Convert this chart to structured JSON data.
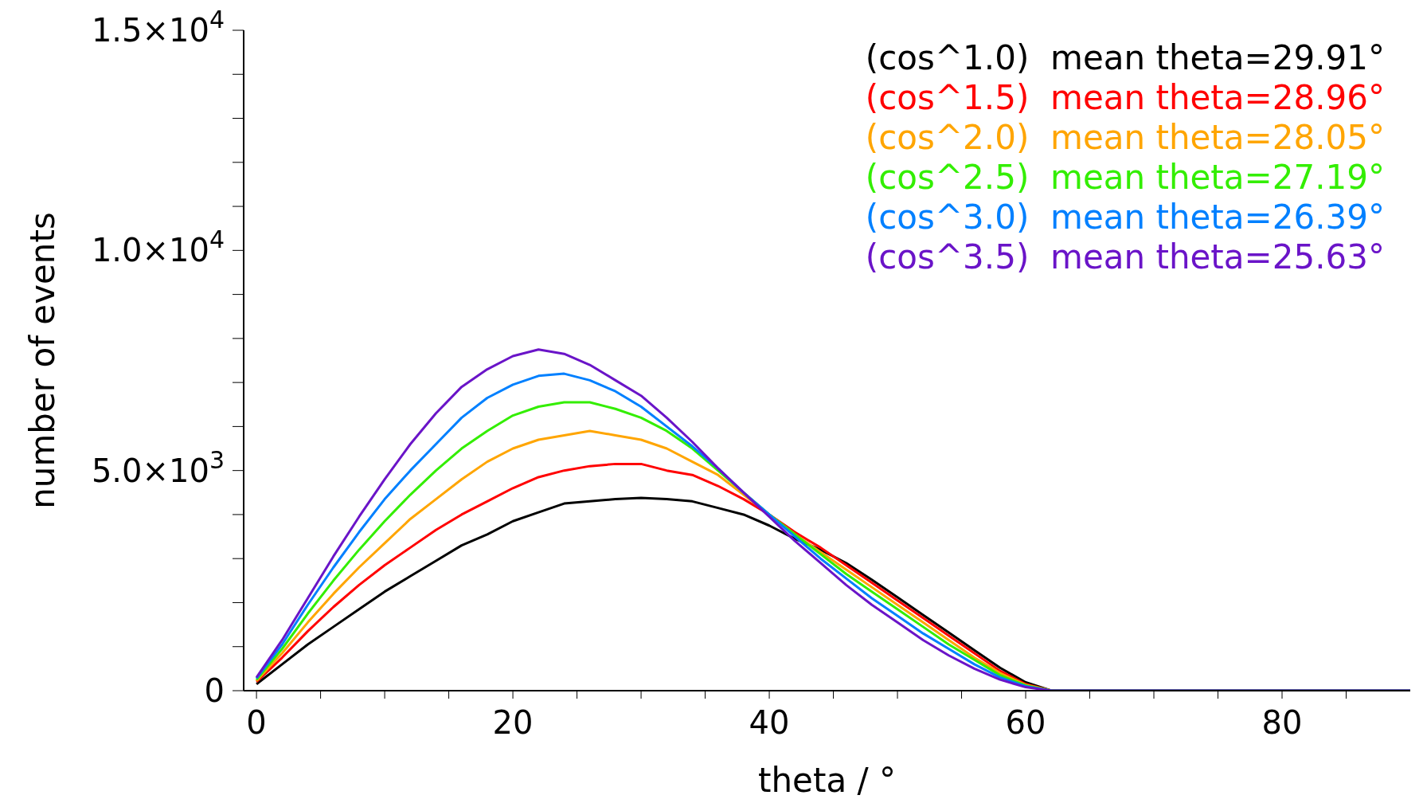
{
  "chart_data": {
    "type": "line",
    "xlabel": "theta / °",
    "ylabel": "number of events",
    "x": [
      0,
      2,
      4,
      6,
      8,
      10,
      12,
      14,
      16,
      18,
      20,
      22,
      24,
      26,
      28,
      30,
      32,
      34,
      36,
      38,
      40,
      42,
      44,
      46,
      48,
      50,
      52,
      54,
      56,
      58,
      60,
      62,
      90
    ],
    "series": [
      {
        "name": "(cos^1.0)  mean theta=29.91°",
        "color": "#000000",
        "values": [
          150,
          600,
          1050,
          1450,
          1850,
          2250,
          2600,
          2950,
          3300,
          3550,
          3850,
          4050,
          4250,
          4300,
          4350,
          4380,
          4350,
          4300,
          4150,
          4000,
          3750,
          3450,
          3200,
          2900,
          2520,
          2120,
          1720,
          1320,
          920,
          520,
          190,
          0,
          0
        ]
      },
      {
        "name": "(cos^1.5)  mean theta=28.96°",
        "color": "#ff0000",
        "values": [
          200,
          750,
          1350,
          1900,
          2400,
          2850,
          3250,
          3650,
          4000,
          4300,
          4600,
          4850,
          5000,
          5100,
          5150,
          5150,
          5000,
          4900,
          4650,
          4350,
          4000,
          3600,
          3250,
          2850,
          2450,
          2050,
          1650,
          1250,
          850,
          450,
          150,
          0,
          0
        ]
      },
      {
        "name": "(cos^2.0)  mean theta=28.05°",
        "color": "#ffa500",
        "values": [
          220,
          850,
          1550,
          2200,
          2800,
          3350,
          3900,
          4350,
          4800,
          5200,
          5500,
          5700,
          5800,
          5900,
          5800,
          5700,
          5500,
          5200,
          4900,
          4450,
          4000,
          3550,
          3150,
          2750,
          2350,
          1950,
          1550,
          1150,
          750,
          400,
          130,
          0,
          0
        ]
      },
      {
        "name": "(cos^2.5)  mean theta=27.19°",
        "color": "#33ee00",
        "values": [
          250,
          950,
          1750,
          2500,
          3200,
          3850,
          4450,
          5000,
          5500,
          5900,
          6250,
          6450,
          6550,
          6550,
          6400,
          6200,
          5900,
          5500,
          5000,
          4500,
          4000,
          3550,
          3100,
          2650,
          2250,
          1850,
          1450,
          1050,
          700,
          350,
          120,
          0,
          0
        ]
      },
      {
        "name": "(cos^3.0)  mean theta=26.39°",
        "color": "#0080ff",
        "values": [
          280,
          1050,
          1950,
          2800,
          3600,
          4350,
          5000,
          5600,
          6200,
          6650,
          6950,
          7150,
          7200,
          7050,
          6800,
          6450,
          6000,
          5550,
          5050,
          4500,
          4000,
          3500,
          3000,
          2550,
          2100,
          1700,
          1300,
          950,
          600,
          300,
          100,
          0,
          0
        ]
      },
      {
        "name": "(cos^3.5)  mean theta=25.63°",
        "color": "#6a14c8",
        "values": [
          300,
          1150,
          2100,
          3050,
          3950,
          4800,
          5600,
          6300,
          6900,
          7300,
          7600,
          7750,
          7650,
          7400,
          7050,
          6700,
          6200,
          5650,
          5050,
          4500,
          3950,
          3400,
          2900,
          2400,
          1950,
          1550,
          1150,
          800,
          500,
          250,
          80,
          0,
          0
        ]
      }
    ],
    "xlim": [
      -1,
      90
    ],
    "xticks": [
      0,
      {
        "value": 5,
        "label": null
      },
      {
        "value": 10,
        "label": null
      },
      {
        "value": 15,
        "label": null
      },
      20,
      {
        "value": 25,
        "label": null
      },
      {
        "value": 30,
        "label": null
      },
      {
        "value": 35,
        "label": null
      },
      40,
      {
        "value": 45,
        "label": null
      },
      {
        "value": 50,
        "label": null
      },
      {
        "value": 55,
        "label": null
      },
      60,
      {
        "value": 65,
        "label": null
      },
      {
        "value": 70,
        "label": null
      },
      {
        "value": 75,
        "label": null
      },
      80,
      {
        "value": 85,
        "label": null
      }
    ],
    "ylim": [
      0,
      15000
    ],
    "yticks": [
      0,
      {
        "value": 1000,
        "label": null
      },
      {
        "value": 2000,
        "label": null
      },
      {
        "value": 3000,
        "label": null
      },
      {
        "value": 4000,
        "label": null
      },
      {
        "value": 5000,
        "label": "5.0×10$^{3}$"
      },
      {
        "value": 6000,
        "label": null
      },
      {
        "value": 7000,
        "label": null
      },
      {
        "value": 8000,
        "label": null
      },
      {
        "value": 9000,
        "label": null
      },
      {
        "value": 10000,
        "label": "1.0×10$^{4}$"
      },
      {
        "value": 11000,
        "label": null
      },
      {
        "value": 12000,
        "label": null
      },
      {
        "value": 13000,
        "label": null
      },
      {
        "value": 14000,
        "label": null
      },
      {
        "value": 15000,
        "label": "1.5×10$^{4}$"
      }
    ],
    "legend": "top right"
  }
}
